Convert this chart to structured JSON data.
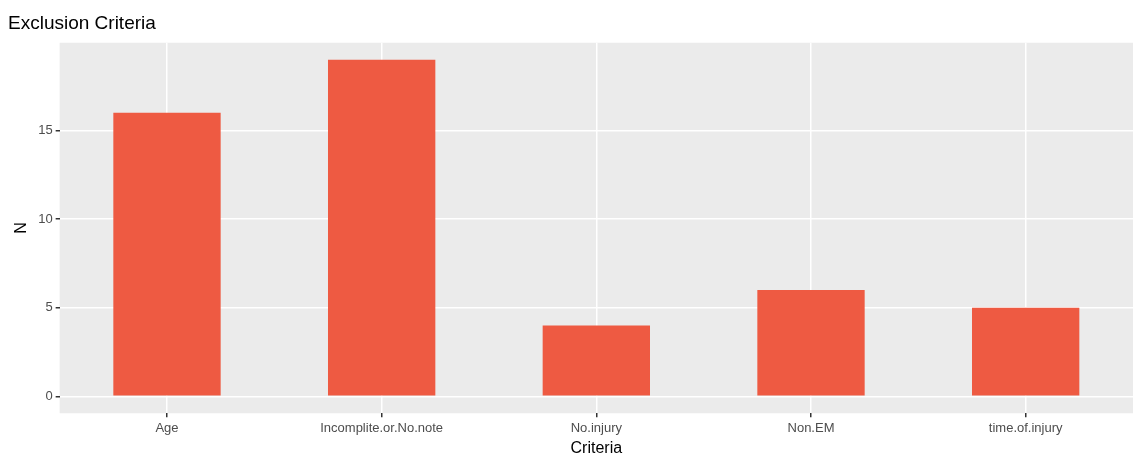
{
  "chart_data": {
    "type": "bar",
    "title": "Exclusion Criteria",
    "xlabel": "Criteria",
    "ylabel": "N",
    "categories": [
      "Age",
      "Incomplite.or.No.note",
      "No.injury",
      "Non.EM",
      "time.of.injury"
    ],
    "values": [
      16,
      19,
      4,
      6,
      5
    ],
    "color": "#ee5a42",
    "ylim": [
      -0.95,
      19.95
    ],
    "yticks": [
      0,
      5,
      10,
      15
    ],
    "grid": true
  }
}
